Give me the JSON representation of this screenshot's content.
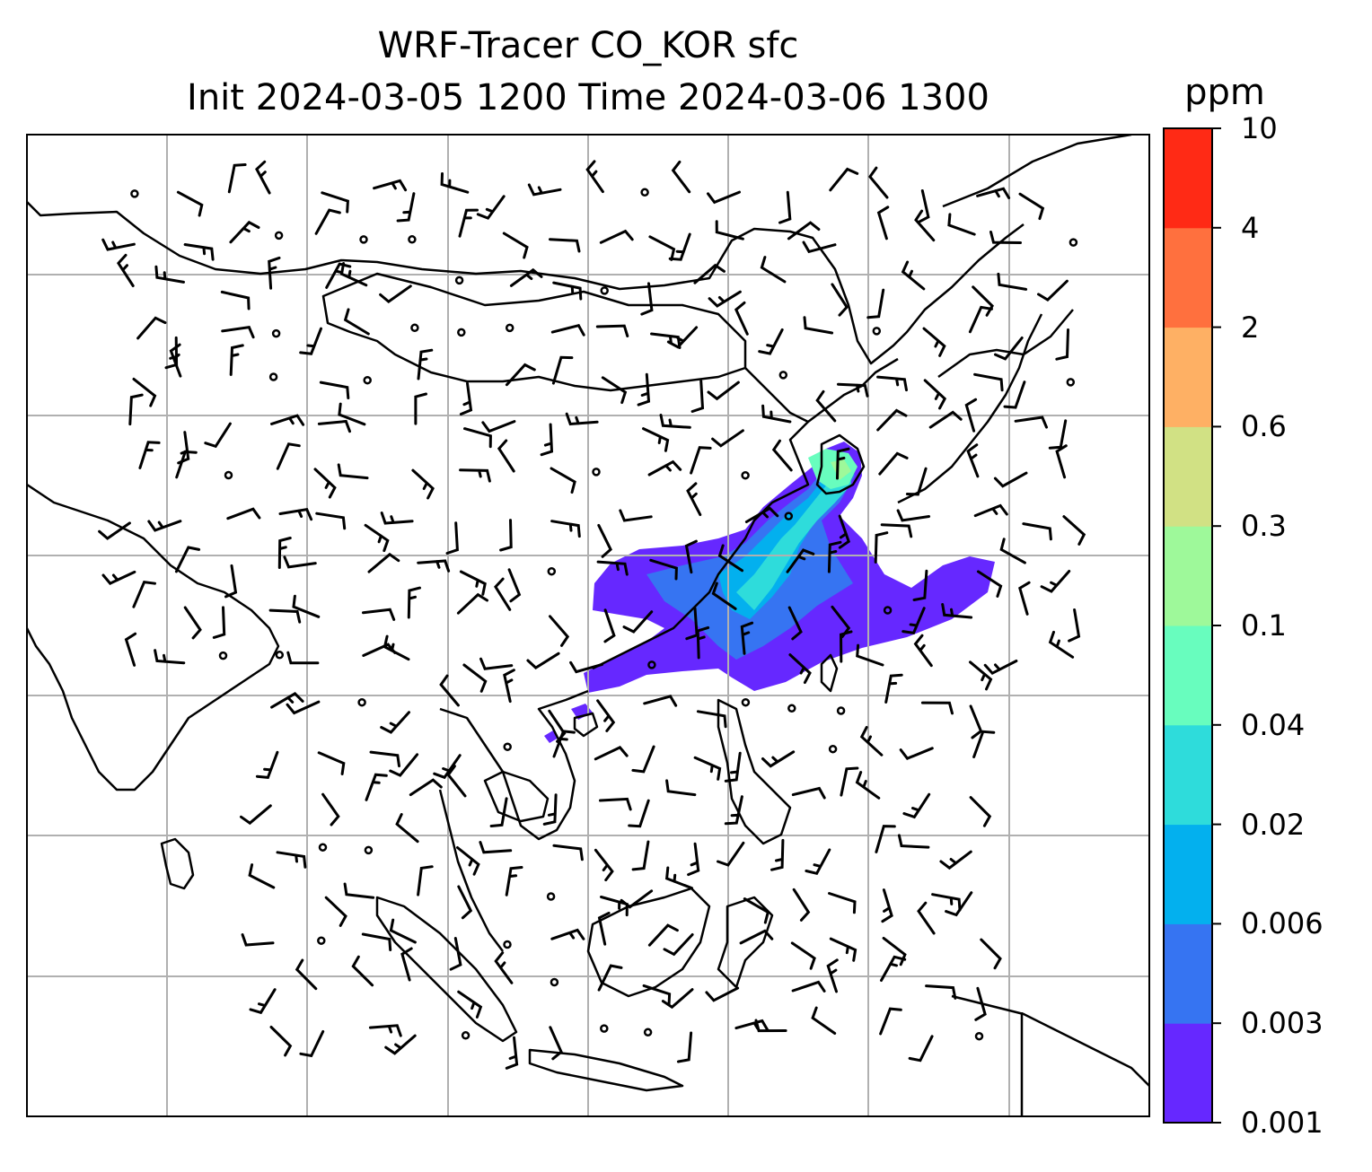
{
  "title": {
    "line1": "WRF-Tracer CO_KOR sfc",
    "line2": "Init 2024-03-05 1200 Time 2024-03-06 1300"
  },
  "colorbar": {
    "unit": "ppm",
    "levels": [
      "0.001",
      "0.003",
      "0.006",
      "0.02",
      "0.04",
      "0.1",
      "0.3",
      "0.6",
      "2",
      "4",
      "10"
    ],
    "colors": [
      "#6628ff",
      "#3674f2",
      "#03b0ee",
      "#2edcdb",
      "#68fdbe",
      "#9ef99a",
      "#d1e184",
      "#feb064",
      "#ff703e",
      "#ff2a15"
    ]
  },
  "map": {
    "background": "#ffffff",
    "coastline_color": "#000000",
    "gridline_color": "#b0b0b0",
    "wind_symbol": "wind-barb"
  },
  "chart_data": {
    "type": "heatmap",
    "variable": "CO_KOR",
    "level": "sfc",
    "unit": "ppm",
    "init_time": "2024-03-05 1200",
    "valid_time": "2024-03-06 1300",
    "contour_levels": [
      0.001,
      0.003,
      0.006,
      0.02,
      0.04,
      0.1,
      0.3,
      0.6,
      2,
      4,
      10
    ],
    "overlay": "wind barbs"
  }
}
